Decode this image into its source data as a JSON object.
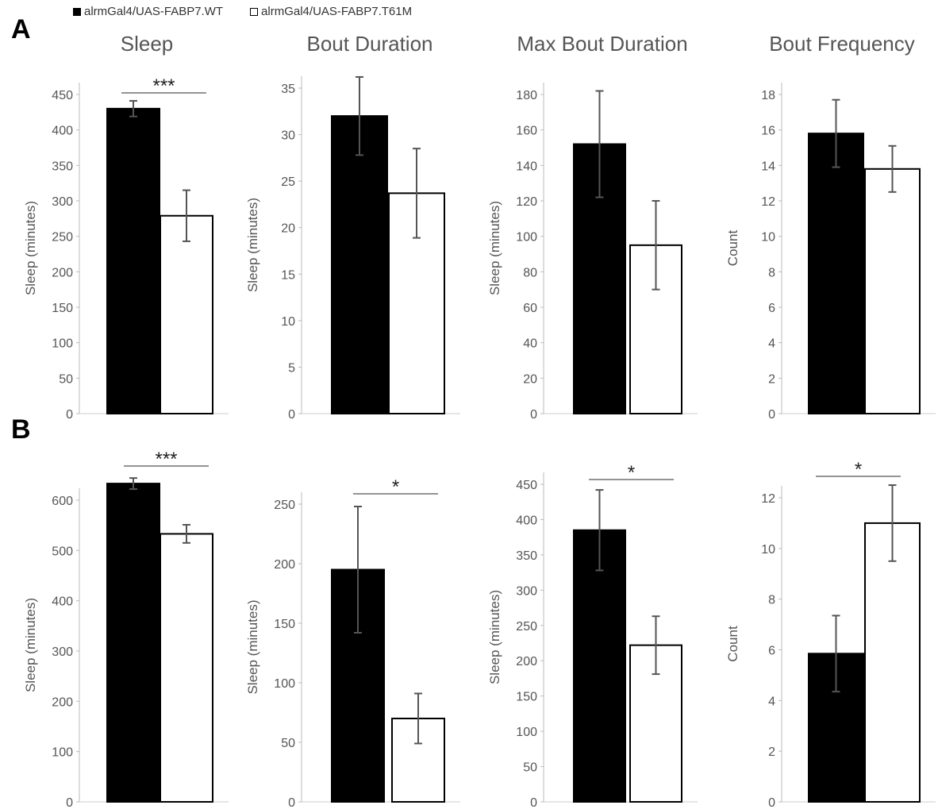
{
  "legend": {
    "wt_label": "alrmGal4/UAS-FABP7.WT",
    "mut_label": "alrmGal4/UAS-FABP7.T61M",
    "wt_color": "#000000",
    "mut_color": "#ffffff"
  },
  "panels": {
    "a": "A",
    "b": "B"
  },
  "titles": [
    "Sleep",
    "Bout Duration",
    "Max Bout Duration",
    "Bout Frequency"
  ],
  "chart_data": [
    {
      "type": "bar",
      "panel": "A",
      "title": "Sleep",
      "ylabel": "Sleep (minutes)",
      "ylim": [
        0,
        450
      ],
      "yticks": [
        0,
        50,
        100,
        150,
        200,
        250,
        300,
        350,
        400,
        450
      ],
      "categories": [
        "alrmGal4/UAS-FABP7.WT",
        "alrmGal4/UAS-FABP7.T61M"
      ],
      "values": [
        430,
        279
      ],
      "errors": [
        11,
        36
      ],
      "significance": "***"
    },
    {
      "type": "bar",
      "panel": "A",
      "title": "Bout Duration",
      "ylabel": "Sleep (minutes)",
      "ylim": [
        0,
        35
      ],
      "yticks": [
        0,
        5,
        10,
        15,
        20,
        25,
        30,
        35
      ],
      "categories": [
        "alrmGal4/UAS-FABP7.WT",
        "alrmGal4/UAS-FABP7.T61M"
      ],
      "values": [
        32,
        23.7
      ],
      "errors": [
        4.2,
        4.8
      ],
      "significance": ""
    },
    {
      "type": "bar",
      "panel": "A",
      "title": "Max Bout Duration",
      "ylabel": "Sleep (minutes)",
      "ylim": [
        0,
        180
      ],
      "yticks": [
        0,
        20,
        40,
        60,
        80,
        100,
        120,
        140,
        160,
        180
      ],
      "categories": [
        "alrmGal4/UAS-FABP7.WT",
        "alrmGal4/UAS-FABP7.T61M"
      ],
      "values": [
        152,
        95
      ],
      "errors": [
        30,
        25
      ],
      "significance": ""
    },
    {
      "type": "bar",
      "panel": "A",
      "title": "Bout Frequency",
      "ylabel": "Count",
      "ylim": [
        0,
        18
      ],
      "yticks": [
        0,
        2,
        4,
        6,
        8,
        10,
        12,
        14,
        16,
        18
      ],
      "categories": [
        "alrmGal4/UAS-FABP7.WT",
        "alrmGal4/UAS-FABP7.T61M"
      ],
      "values": [
        15.8,
        13.8
      ],
      "errors": [
        1.9,
        1.3
      ],
      "significance": ""
    },
    {
      "type": "bar",
      "panel": "B",
      "title": "",
      "ylabel": "Sleep (minutes)",
      "ylim": [
        0,
        600
      ],
      "yticks": [
        0,
        100,
        200,
        300,
        400,
        500,
        600
      ],
      "categories": [
        "alrmGal4/UAS-FABP7.WT",
        "alrmGal4/UAS-FABP7.T61M"
      ],
      "values": [
        633,
        533
      ],
      "errors": [
        11,
        18
      ],
      "significance": "***"
    },
    {
      "type": "bar",
      "panel": "B",
      "title": "",
      "ylabel": "Sleep (minutes)",
      "ylim": [
        0,
        250
      ],
      "yticks": [
        0,
        50,
        100,
        150,
        200,
        250
      ],
      "categories": [
        "alrmGal4/UAS-FABP7.WT",
        "alrmGal4/UAS-FABP7.T61M"
      ],
      "values": [
        195,
        70
      ],
      "errors": [
        53,
        21
      ],
      "significance": "*"
    },
    {
      "type": "bar",
      "panel": "B",
      "title": "",
      "ylabel": "Sleep (minutes)",
      "ylim": [
        0,
        450
      ],
      "yticks": [
        0,
        50,
        100,
        150,
        200,
        250,
        300,
        350,
        400,
        450
      ],
      "categories": [
        "alrmGal4/UAS-FABP7.WT",
        "alrmGal4/UAS-FABP7.T61M"
      ],
      "values": [
        385,
        222
      ],
      "errors": [
        57,
        41
      ],
      "significance": "*"
    },
    {
      "type": "bar",
      "panel": "B",
      "title": "",
      "ylabel": "Count",
      "ylim": [
        0,
        12
      ],
      "yticks": [
        0,
        2,
        4,
        6,
        8,
        10,
        12
      ],
      "categories": [
        "alrmGal4/UAS-FABP7.WT",
        "alrmGal4/UAS-FABP7.T61M"
      ],
      "values": [
        5.85,
        11
      ],
      "errors": [
        1.5,
        1.5
      ],
      "significance": "*"
    }
  ]
}
